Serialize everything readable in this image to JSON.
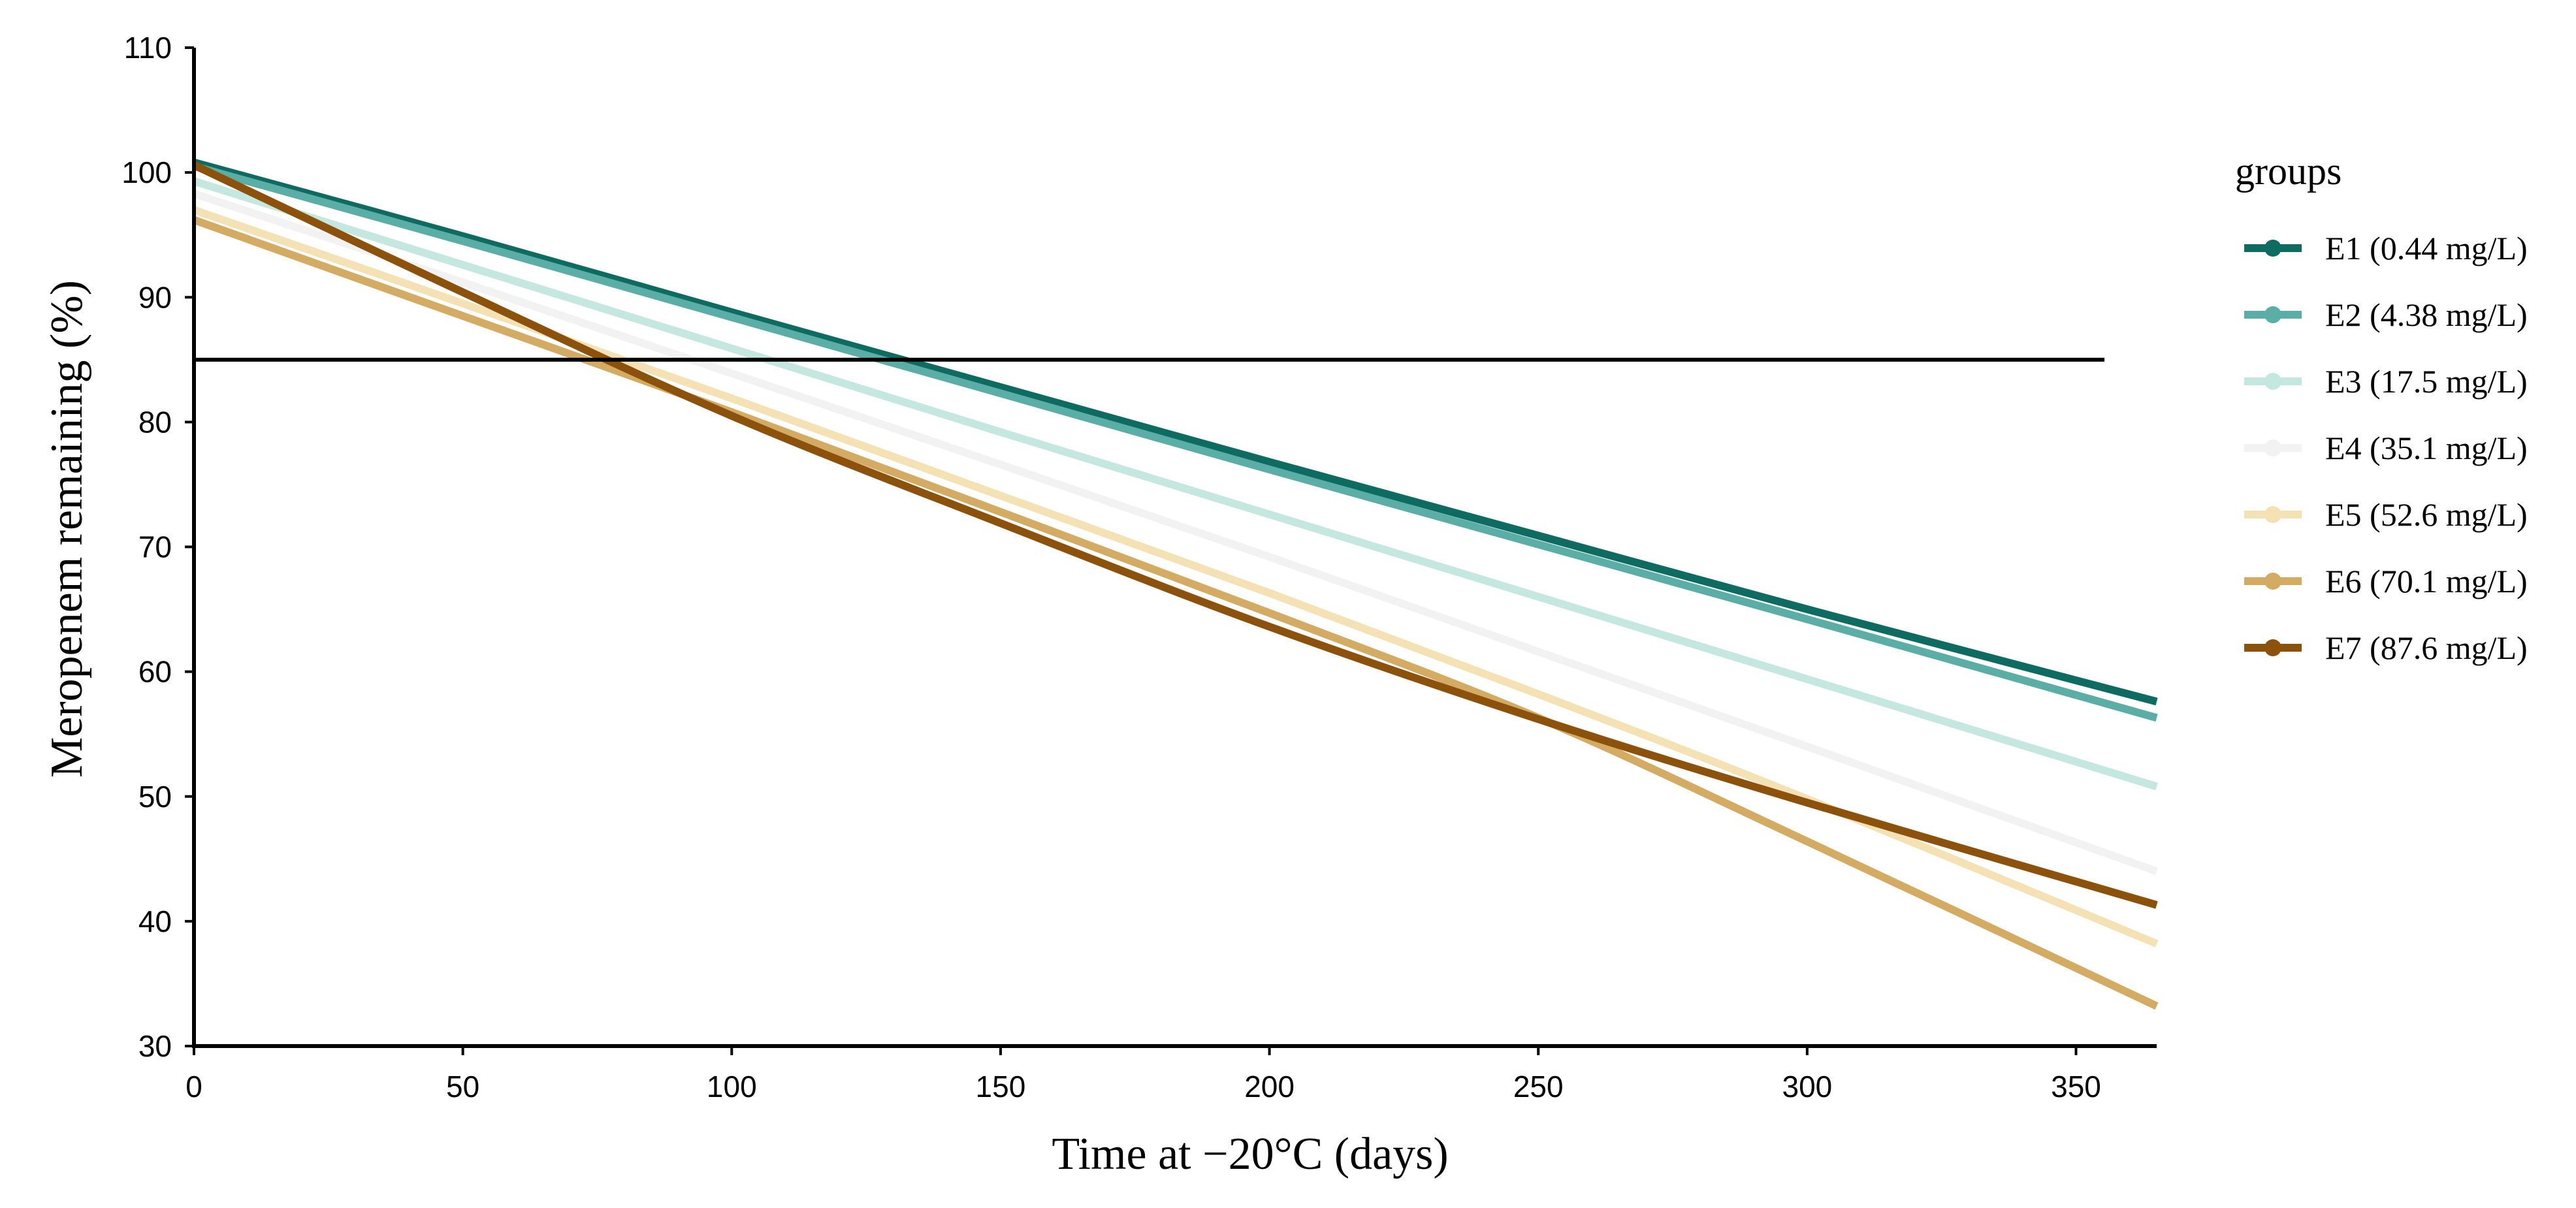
{
  "chart_data": {
    "type": "line",
    "xlabel": "Time at −20°C (days)",
    "ylabel": "Meropenem remaining (%)",
    "xlim": [
      0,
      365
    ],
    "ylim": [
      30,
      110
    ],
    "xticks": [
      0,
      50,
      100,
      150,
      200,
      250,
      300,
      350
    ],
    "yticks": [
      30,
      40,
      50,
      60,
      70,
      80,
      90,
      100,
      110
    ],
    "grid": false,
    "reference_line": {
      "y": 85
    },
    "legend": {
      "title": "groups",
      "position": "right"
    },
    "x": [
      0,
      50,
      100,
      150,
      200,
      250,
      300,
      365
    ],
    "series": [
      {
        "name": "E1 (0.44 mg/L)",
        "color": "#0e6b62",
        "values": [
          100.8,
          94.9,
          88.8,
          82.8,
          76.8,
          70.9,
          65.0,
          57.6
        ]
      },
      {
        "name": "E2 (4.38 mg/L)",
        "color": "#5aaea6",
        "values": [
          100.5,
          94.5,
          88.4,
          82.3,
          76.2,
          70.2,
          64.2,
          56.3
        ]
      },
      {
        "name": "E3 (17.5 mg/L)",
        "color": "#c4e7e0",
        "values": [
          99.3,
          92.6,
          85.9,
          79.2,
          72.6,
          66.0,
          59.4,
          50.8
        ]
      },
      {
        "name": "E4 (35.1 mg/L)",
        "color": "#f2f2f2",
        "values": [
          98.3,
          91.2,
          83.9,
          76.6,
          69.2,
          61.6,
          54.0,
          44.0
        ]
      },
      {
        "name": "E5 (52.6 mg/L)",
        "color": "#f5e2b4",
        "values": [
          97.0,
          89.5,
          81.9,
          74.1,
          66.3,
          58.2,
          49.8,
          38.2
        ]
      },
      {
        "name": "E6 (70.1 mg/L)",
        "color": "#d3ab62",
        "values": [
          96.2,
          88.5,
          80.8,
          72.8,
          64.7,
          56.3,
          46.4,
          33.2
        ]
      },
      {
        "name": "E7 (87.6 mg/L)",
        "color": "#8c510a",
        "values": [
          100.6,
          90.4,
          80.5,
          71.9,
          63.6,
          56.2,
          49.5,
          41.3
        ]
      }
    ]
  }
}
